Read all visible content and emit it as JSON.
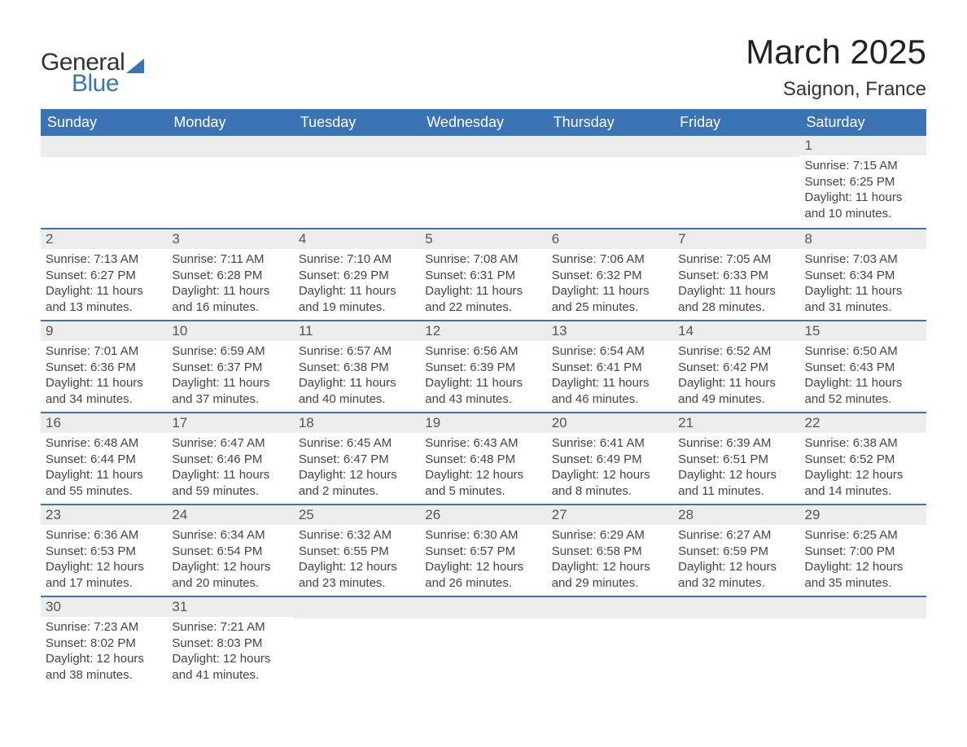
{
  "brand": {
    "part1": "General",
    "part2": "Blue"
  },
  "title": "March 2025",
  "location": "Saignon, France",
  "colors": {
    "header_bg": "#3b74b5",
    "header_text": "#ffffff",
    "daynum_bg": "#ededed",
    "daynum_text": "#555555",
    "body_text": "#444444",
    "row_border": "#3b74b5"
  },
  "fonts": {
    "title_size_pt": 32,
    "location_size_pt": 18,
    "header_size_pt": 14,
    "daynum_size_pt": 13,
    "body_size_pt": 11
  },
  "weekdays": [
    "Sunday",
    "Monday",
    "Tuesday",
    "Wednesday",
    "Thursday",
    "Friday",
    "Saturday"
  ],
  "weeks": [
    [
      {
        "blank": true
      },
      {
        "blank": true
      },
      {
        "blank": true
      },
      {
        "blank": true
      },
      {
        "blank": true
      },
      {
        "blank": true
      },
      {
        "day": "1",
        "sunrise": "Sunrise: 7:15 AM",
        "sunset": "Sunset: 6:25 PM",
        "dl1": "Daylight: 11 hours",
        "dl2": "and 10 minutes."
      }
    ],
    [
      {
        "day": "2",
        "sunrise": "Sunrise: 7:13 AM",
        "sunset": "Sunset: 6:27 PM",
        "dl1": "Daylight: 11 hours",
        "dl2": "and 13 minutes."
      },
      {
        "day": "3",
        "sunrise": "Sunrise: 7:11 AM",
        "sunset": "Sunset: 6:28 PM",
        "dl1": "Daylight: 11 hours",
        "dl2": "and 16 minutes."
      },
      {
        "day": "4",
        "sunrise": "Sunrise: 7:10 AM",
        "sunset": "Sunset: 6:29 PM",
        "dl1": "Daylight: 11 hours",
        "dl2": "and 19 minutes."
      },
      {
        "day": "5",
        "sunrise": "Sunrise: 7:08 AM",
        "sunset": "Sunset: 6:31 PM",
        "dl1": "Daylight: 11 hours",
        "dl2": "and 22 minutes."
      },
      {
        "day": "6",
        "sunrise": "Sunrise: 7:06 AM",
        "sunset": "Sunset: 6:32 PM",
        "dl1": "Daylight: 11 hours",
        "dl2": "and 25 minutes."
      },
      {
        "day": "7",
        "sunrise": "Sunrise: 7:05 AM",
        "sunset": "Sunset: 6:33 PM",
        "dl1": "Daylight: 11 hours",
        "dl2": "and 28 minutes."
      },
      {
        "day": "8",
        "sunrise": "Sunrise: 7:03 AM",
        "sunset": "Sunset: 6:34 PM",
        "dl1": "Daylight: 11 hours",
        "dl2": "and 31 minutes."
      }
    ],
    [
      {
        "day": "9",
        "sunrise": "Sunrise: 7:01 AM",
        "sunset": "Sunset: 6:36 PM",
        "dl1": "Daylight: 11 hours",
        "dl2": "and 34 minutes."
      },
      {
        "day": "10",
        "sunrise": "Sunrise: 6:59 AM",
        "sunset": "Sunset: 6:37 PM",
        "dl1": "Daylight: 11 hours",
        "dl2": "and 37 minutes."
      },
      {
        "day": "11",
        "sunrise": "Sunrise: 6:57 AM",
        "sunset": "Sunset: 6:38 PM",
        "dl1": "Daylight: 11 hours",
        "dl2": "and 40 minutes."
      },
      {
        "day": "12",
        "sunrise": "Sunrise: 6:56 AM",
        "sunset": "Sunset: 6:39 PM",
        "dl1": "Daylight: 11 hours",
        "dl2": "and 43 minutes."
      },
      {
        "day": "13",
        "sunrise": "Sunrise: 6:54 AM",
        "sunset": "Sunset: 6:41 PM",
        "dl1": "Daylight: 11 hours",
        "dl2": "and 46 minutes."
      },
      {
        "day": "14",
        "sunrise": "Sunrise: 6:52 AM",
        "sunset": "Sunset: 6:42 PM",
        "dl1": "Daylight: 11 hours",
        "dl2": "and 49 minutes."
      },
      {
        "day": "15",
        "sunrise": "Sunrise: 6:50 AM",
        "sunset": "Sunset: 6:43 PM",
        "dl1": "Daylight: 11 hours",
        "dl2": "and 52 minutes."
      }
    ],
    [
      {
        "day": "16",
        "sunrise": "Sunrise: 6:48 AM",
        "sunset": "Sunset: 6:44 PM",
        "dl1": "Daylight: 11 hours",
        "dl2": "and 55 minutes."
      },
      {
        "day": "17",
        "sunrise": "Sunrise: 6:47 AM",
        "sunset": "Sunset: 6:46 PM",
        "dl1": "Daylight: 11 hours",
        "dl2": "and 59 minutes."
      },
      {
        "day": "18",
        "sunrise": "Sunrise: 6:45 AM",
        "sunset": "Sunset: 6:47 PM",
        "dl1": "Daylight: 12 hours",
        "dl2": "and 2 minutes."
      },
      {
        "day": "19",
        "sunrise": "Sunrise: 6:43 AM",
        "sunset": "Sunset: 6:48 PM",
        "dl1": "Daylight: 12 hours",
        "dl2": "and 5 minutes."
      },
      {
        "day": "20",
        "sunrise": "Sunrise: 6:41 AM",
        "sunset": "Sunset: 6:49 PM",
        "dl1": "Daylight: 12 hours",
        "dl2": "and 8 minutes."
      },
      {
        "day": "21",
        "sunrise": "Sunrise: 6:39 AM",
        "sunset": "Sunset: 6:51 PM",
        "dl1": "Daylight: 12 hours",
        "dl2": "and 11 minutes."
      },
      {
        "day": "22",
        "sunrise": "Sunrise: 6:38 AM",
        "sunset": "Sunset: 6:52 PM",
        "dl1": "Daylight: 12 hours",
        "dl2": "and 14 minutes."
      }
    ],
    [
      {
        "day": "23",
        "sunrise": "Sunrise: 6:36 AM",
        "sunset": "Sunset: 6:53 PM",
        "dl1": "Daylight: 12 hours",
        "dl2": "and 17 minutes."
      },
      {
        "day": "24",
        "sunrise": "Sunrise: 6:34 AM",
        "sunset": "Sunset: 6:54 PM",
        "dl1": "Daylight: 12 hours",
        "dl2": "and 20 minutes."
      },
      {
        "day": "25",
        "sunrise": "Sunrise: 6:32 AM",
        "sunset": "Sunset: 6:55 PM",
        "dl1": "Daylight: 12 hours",
        "dl2": "and 23 minutes."
      },
      {
        "day": "26",
        "sunrise": "Sunrise: 6:30 AM",
        "sunset": "Sunset: 6:57 PM",
        "dl1": "Daylight: 12 hours",
        "dl2": "and 26 minutes."
      },
      {
        "day": "27",
        "sunrise": "Sunrise: 6:29 AM",
        "sunset": "Sunset: 6:58 PM",
        "dl1": "Daylight: 12 hours",
        "dl2": "and 29 minutes."
      },
      {
        "day": "28",
        "sunrise": "Sunrise: 6:27 AM",
        "sunset": "Sunset: 6:59 PM",
        "dl1": "Daylight: 12 hours",
        "dl2": "and 32 minutes."
      },
      {
        "day": "29",
        "sunrise": "Sunrise: 6:25 AM",
        "sunset": "Sunset: 7:00 PM",
        "dl1": "Daylight: 12 hours",
        "dl2": "and 35 minutes."
      }
    ],
    [
      {
        "day": "30",
        "sunrise": "Sunrise: 7:23 AM",
        "sunset": "Sunset: 8:02 PM",
        "dl1": "Daylight: 12 hours",
        "dl2": "and 38 minutes."
      },
      {
        "day": "31",
        "sunrise": "Sunrise: 7:21 AM",
        "sunset": "Sunset: 8:03 PM",
        "dl1": "Daylight: 12 hours",
        "dl2": "and 41 minutes."
      },
      {
        "blank": true
      },
      {
        "blank": true
      },
      {
        "blank": true
      },
      {
        "blank": true
      },
      {
        "blank": true
      }
    ]
  ]
}
